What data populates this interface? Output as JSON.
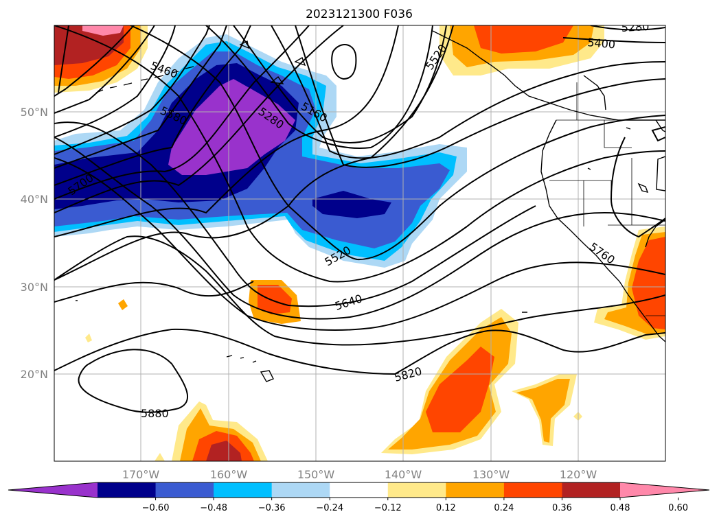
{
  "title": "2023121300 F036",
  "map": {
    "lat_ticks": [
      "20°N",
      "30°N",
      "40°N",
      "50°N"
    ],
    "lon_ticks": [
      "170°W",
      "160°W",
      "150°W",
      "140°W",
      "130°W",
      "120°W"
    ],
    "contour_labels": [
      "5280",
      "5400",
      "5460",
      "5520",
      "5580",
      "5280",
      "5160",
      "5700",
      "5520",
      "5640",
      "5760",
      "5820",
      "5880"
    ],
    "grid": true
  },
  "colorbar": {
    "colors": [
      "#9932cc",
      "#00008b",
      "#3a5bd1",
      "#00bfff",
      "#add8f5",
      "#ffffff",
      "#ffe98a",
      "#ffa500",
      "#ff4500",
      "#b22222",
      "#ff88aa"
    ],
    "ticks": [
      "−0.60",
      "−0.48",
      "−0.36",
      "−0.24",
      "−0.12",
      "0.12",
      "0.24",
      "0.36",
      "0.48",
      "0.60"
    ]
  }
}
